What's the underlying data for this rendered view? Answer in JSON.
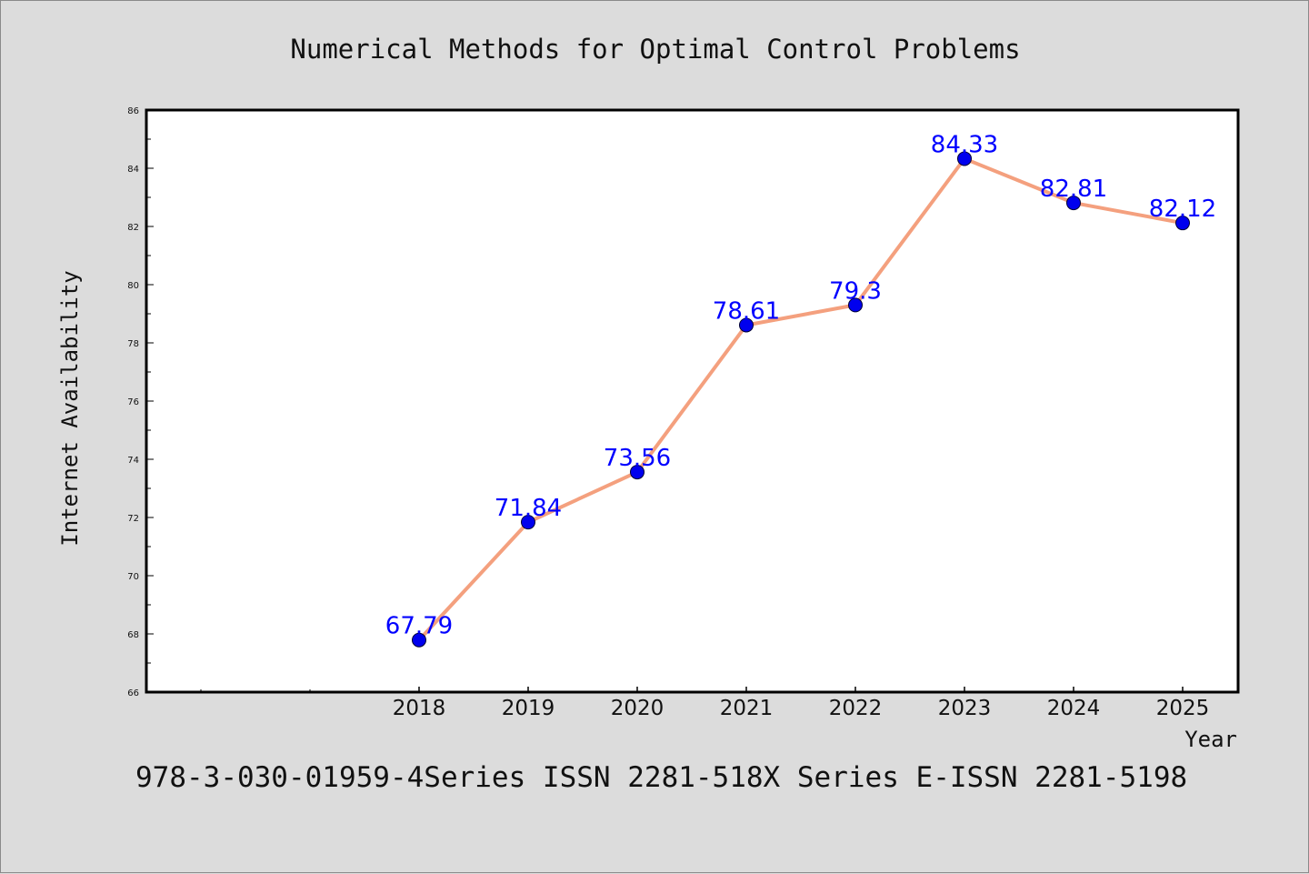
{
  "chart_data": {
    "type": "line",
    "title": "Numerical Methods for Optimal Control Problems",
    "xlabel": "Year",
    "ylabel": "Internet Availability",
    "x": [
      "2018",
      "2019",
      "2020",
      "2021",
      "2022",
      "2023",
      "2024",
      "2025"
    ],
    "series": [
      {
        "values": [
          67.79,
          71.84,
          73.56,
          78.61,
          79.3,
          84.33,
          82.81,
          82.12
        ],
        "labels": [
          "67.79",
          "71.84",
          "73.56",
          "78.61",
          "79.3",
          "84.33",
          "82.81",
          "82.12"
        ]
      }
    ],
    "ylim": [
      66,
      86
    ],
    "yticks": [
      "66",
      "68",
      "70",
      "72",
      "74",
      "76",
      "78",
      "80",
      "82",
      "84",
      "86"
    ],
    "grid": false,
    "legend": "none",
    "colors": {
      "line": "#f4a07e",
      "marker": "#0000ee",
      "marker_edge": "#000033",
      "data_label": "#0000ff",
      "background": "#dcdcdc",
      "plot_area": "#ffffff"
    }
  },
  "footer": "978-3-030-01959-4Series ISSN 2281-518X Series E-ISSN 2281-5198"
}
